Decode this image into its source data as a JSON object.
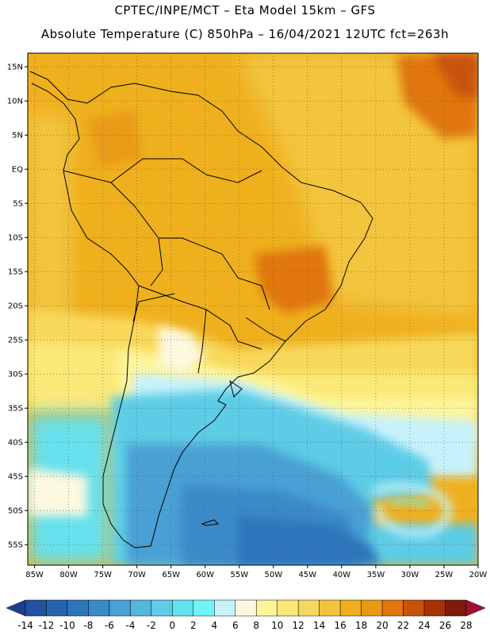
{
  "header": {
    "line1": "CPTEC/INPE/MCT –  Eta Model 15km – GFS",
    "line2": "Absolute Temperature (C) 850hPa – 16/04/2021 12UTC fct=263h"
  },
  "map": {
    "lon_range": [
      -86,
      -20
    ],
    "lat_range": [
      -58,
      17
    ],
    "lat_ticks": [
      "15N",
      "10N",
      "5N",
      "EQ",
      "5S",
      "10S",
      "15S",
      "20S",
      "25S",
      "30S",
      "35S",
      "40S",
      "45S",
      "50S",
      "55S"
    ],
    "lon_ticks": [
      "85W",
      "80W",
      "75W",
      "70W",
      "65W",
      "60W",
      "55W",
      "50W",
      "45W",
      "40W",
      "35W",
      "30W",
      "25W",
      "20W"
    ],
    "grid": true
  },
  "colorbar": {
    "labels": [
      "-14",
      "-12",
      "-10",
      "-8",
      "-6",
      "-4",
      "-2",
      "0",
      "2",
      "4",
      "6",
      "8",
      "10",
      "12",
      "14",
      "16",
      "18",
      "20",
      "22",
      "24",
      "26",
      "28"
    ],
    "colors": [
      "#1d3f8f",
      "#22519f",
      "#2863ad",
      "#2f76bc",
      "#3b8ac8",
      "#48a0d4",
      "#54b7de",
      "#5dcce6",
      "#66e1ee",
      "#6ff4f8",
      "#c8f2fb",
      "#fdf8e0",
      "#fdf59a",
      "#fbe977",
      "#f8d85a",
      "#f3c43e",
      "#efb01e",
      "#e99a12",
      "#e0760c",
      "#c95207",
      "#a83005",
      "#7e1b0b",
      "#a00f32"
    ]
  }
}
